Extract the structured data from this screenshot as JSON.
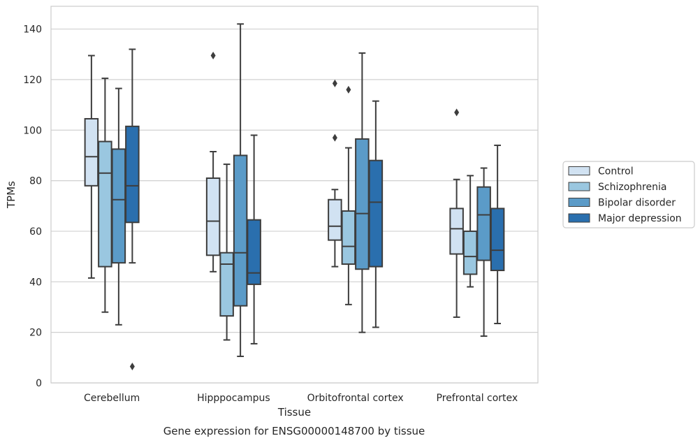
{
  "chart_data": {
    "type": "boxplot",
    "xlabel": "Tissue",
    "ylabel": "TPMs",
    "caption": "Gene expression for ENSG00000148700 by tissue",
    "ylim": [
      0,
      149
    ],
    "yticks": [
      0,
      20,
      40,
      60,
      80,
      100,
      120,
      140
    ],
    "grid": true,
    "legend_position": "right",
    "categories": [
      "Cerebellum",
      "Hipppocampus",
      "Orbitofrontal cortex",
      "Prefrontal cortex"
    ],
    "series": [
      {
        "name": "Control",
        "color": "#d1e2f2",
        "boxes": [
          {
            "whisker_low": 41.5,
            "q1": 78,
            "median": 89.5,
            "q3": 104.5,
            "whisker_high": 129.5,
            "outliers": []
          },
          {
            "whisker_low": 44,
            "q1": 50.5,
            "median": 64,
            "q3": 81,
            "whisker_high": 91.5,
            "outliers": [
              129.5
            ]
          },
          {
            "whisker_low": 46,
            "q1": 56.5,
            "median": 62,
            "q3": 72.5,
            "whisker_high": 76.5,
            "outliers": [
              97,
              118.5
            ]
          },
          {
            "whisker_low": 26,
            "q1": 51,
            "median": 61,
            "q3": 69,
            "whisker_high": 80.5,
            "outliers": [
              107
            ]
          }
        ]
      },
      {
        "name": "Schizophrenia",
        "color": "#9ac7e0",
        "boxes": [
          {
            "whisker_low": 28,
            "q1": 46,
            "median": 83,
            "q3": 95.5,
            "whisker_high": 120.5,
            "outliers": []
          },
          {
            "whisker_low": 17,
            "q1": 26.5,
            "median": 47,
            "q3": 51.5,
            "whisker_high": 86.5,
            "outliers": []
          },
          {
            "whisker_low": 31,
            "q1": 47,
            "median": 54,
            "q3": 68,
            "whisker_high": 93,
            "outliers": [
              116
            ]
          },
          {
            "whisker_low": 38,
            "q1": 43,
            "median": 50,
            "q3": 60,
            "whisker_high": 82,
            "outliers": []
          }
        ]
      },
      {
        "name": "Bipolar disorder",
        "color": "#5b9bc8",
        "boxes": [
          {
            "whisker_low": 23,
            "q1": 47.5,
            "median": 72.5,
            "q3": 92.5,
            "whisker_high": 116.5,
            "outliers": []
          },
          {
            "whisker_low": 10.5,
            "q1": 30.5,
            "median": 51.5,
            "q3": 90,
            "whisker_high": 142,
            "outliers": []
          },
          {
            "whisker_low": 20,
            "q1": 45,
            "median": 67,
            "q3": 96.5,
            "whisker_high": 130.5,
            "outliers": []
          },
          {
            "whisker_low": 18.5,
            "q1": 48.5,
            "median": 66.5,
            "q3": 77.5,
            "whisker_high": 85,
            "outliers": []
          }
        ]
      },
      {
        "name": "Major depression",
        "color": "#2a6fae",
        "boxes": [
          {
            "whisker_low": 47.5,
            "q1": 63.5,
            "median": 78,
            "q3": 101.5,
            "whisker_high": 132,
            "outliers": [
              6.5
            ]
          },
          {
            "whisker_low": 15.5,
            "q1": 39,
            "median": 43.5,
            "q3": 64.5,
            "whisker_high": 98,
            "outliers": []
          },
          {
            "whisker_low": 22,
            "q1": 46,
            "median": 71.5,
            "q3": 88,
            "whisker_high": 111.5,
            "outliers": []
          },
          {
            "whisker_low": 23.5,
            "q1": 44.5,
            "median": 52.5,
            "q3": 69,
            "whisker_high": 94,
            "outliers": []
          }
        ]
      }
    ]
  }
}
